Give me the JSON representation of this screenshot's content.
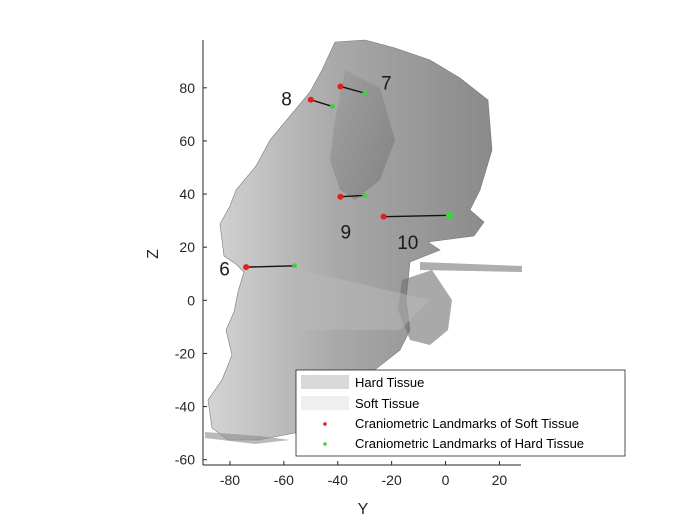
{
  "chart_data": {
    "type": "scatter",
    "xlabel": "Y",
    "ylabel": "Z",
    "xlim": [
      -90,
      28
    ],
    "ylim": [
      -62,
      98
    ],
    "xticks": [
      -80,
      -60,
      -40,
      -20,
      0,
      20
    ],
    "yticks": [
      -60,
      -40,
      -20,
      0,
      20,
      40,
      60,
      80
    ],
    "grid": false,
    "legend_position": "bottom-right",
    "legend": [
      {
        "label": "Hard Tissue",
        "kind": "patch",
        "color": "#d9d9d9"
      },
      {
        "label": "Soft Tissue",
        "kind": "patch",
        "color": "#efefef"
      },
      {
        "label": "Craniometric Landmarks of Soft Tissue",
        "kind": "marker",
        "color": "#e0201b"
      },
      {
        "label": "Craniometric Landmarks of Hard Tissue",
        "kind": "marker",
        "color": "#3fd13f"
      }
    ],
    "landmarks": [
      {
        "label": "6",
        "soft": [
          -74,
          12.5
        ],
        "hard": [
          -56,
          13
        ],
        "label_pos": [
          -82,
          12
        ]
      },
      {
        "label": "7",
        "soft": [
          -39,
          80.5
        ],
        "hard": [
          -30,
          78
        ],
        "label_pos": [
          -22,
          82
        ]
      },
      {
        "label": "8",
        "soft": [
          -50,
          75.5
        ],
        "hard": [
          -42,
          73
        ],
        "label_pos": [
          -59,
          76
        ]
      },
      {
        "label": "9",
        "soft": [
          -39,
          39
        ],
        "hard": [
          -30,
          39.5
        ],
        "label_pos": [
          -37,
          26
        ]
      },
      {
        "label": "10",
        "soft": [
          -23,
          31.5
        ],
        "hard": [
          1.5,
          32
        ],
        "label_pos": [
          -14,
          22
        ]
      }
    ]
  }
}
